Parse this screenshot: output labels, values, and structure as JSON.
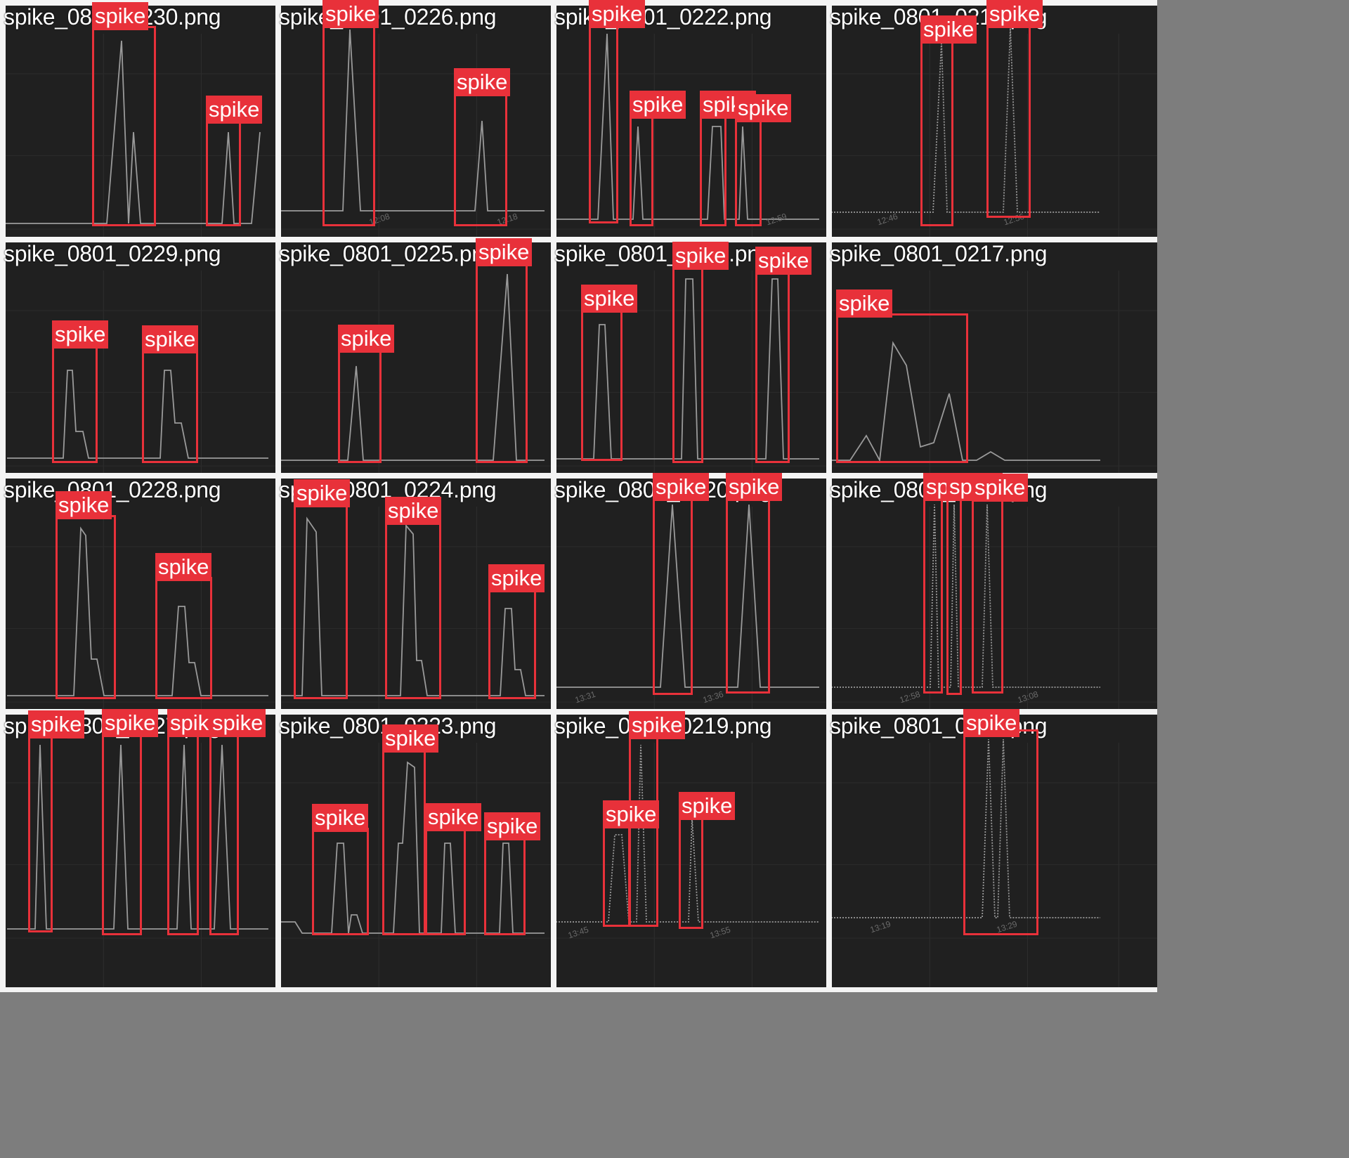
{
  "label_color": "#e8313a",
  "panels": [
    {
      "filename": "spike_0801_0230.png",
      "ticks": [],
      "detection_count": 2
    },
    {
      "filename": "spike_0801_0226.png",
      "ticks": [
        "12:08",
        "12:18"
      ],
      "detection_count": 2
    },
    {
      "filename": "spike_0801_0222.png",
      "ticks": [
        "12:59"
      ],
      "detection_count": 4
    },
    {
      "filename": "spike_0801_0218.png",
      "ticks": [
        "12:46",
        "12:56"
      ],
      "detection_count": 2
    },
    {
      "filename": "spike_0801_0229.png",
      "ticks": [],
      "detection_count": 2
    },
    {
      "filename": "spike_0801_0225.png",
      "ticks": [],
      "detection_count": 2
    },
    {
      "filename": "spike_0801_0221.png",
      "ticks": [],
      "detection_count": 3
    },
    {
      "filename": "spike_0801_0217.png",
      "ticks": [],
      "detection_count": 1
    },
    {
      "filename": "spike_0801_0228.png",
      "ticks": [],
      "detection_count": 2
    },
    {
      "filename": "spike_0801_0224.png",
      "ticks": [],
      "detection_count": 3
    },
    {
      "filename": "spike_0801_0220.png",
      "ticks": [
        "13:31",
        "13:36"
      ],
      "detection_count": 2
    },
    {
      "filename": "spike_0801_0216.png",
      "ticks": [
        "12:58",
        "13:08"
      ],
      "detection_count": 3
    },
    {
      "filename": "spike_0801_0227.png",
      "ticks": [],
      "detection_count": 4
    },
    {
      "filename": "spike_0801_0223.png",
      "ticks": [],
      "detection_count": 4
    },
    {
      "filename": "spike_0801_0219.png",
      "ticks": [
        "13:45",
        "13:55"
      ],
      "detection_count": 3
    },
    {
      "filename": "spike_0801_0215.png",
      "ticks": [
        "13:19",
        "13:29"
      ],
      "detection_count": 1
    }
  ],
  "detection_label": "spike"
}
